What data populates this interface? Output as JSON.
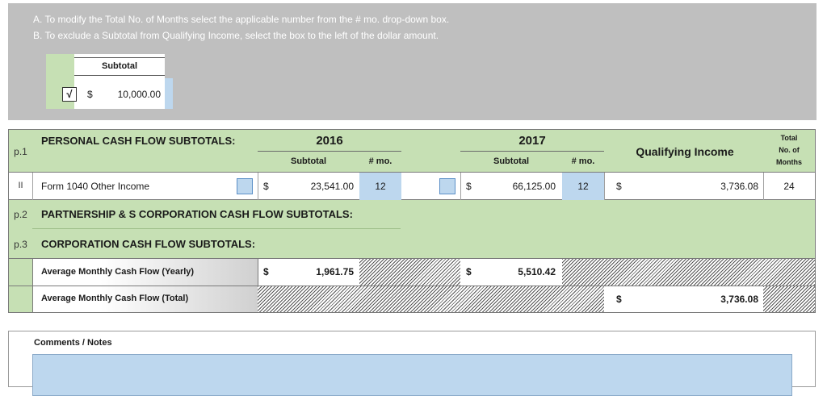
{
  "instructions": {
    "line_a": "A. To modify the Total No. of Months select the applicable number from the # mo. drop-down box.",
    "line_b": "B. To exclude a Subtotal from Qualifying Income, select the box to the left of the dollar amount.",
    "example": {
      "header": "Subtotal",
      "check": "√",
      "currency": "$",
      "amount": "10,000.00"
    }
  },
  "header": {
    "p_label": "p.1",
    "section_title": "PERSONAL CASH FLOW SUBTOTALS:",
    "year1": "2016",
    "year2": "2017",
    "subtotal_label": "Subtotal",
    "months_label": "# mo.",
    "qualifying_label": "Qualifying Income",
    "total_label_1": "Total",
    "total_label_2": "No. of",
    "total_label_3": "Months"
  },
  "income_row": {
    "row_label": "II",
    "name": "Form 1040 Other Income",
    "currency": "$",
    "y1_subtotal": "23,541.00",
    "y1_months": "12",
    "y2_subtotal": "66,125.00",
    "y2_months": "12",
    "qualifying": "3,736.08",
    "total_months": "24"
  },
  "sections": {
    "p2_label": "p.2",
    "p2_title": "PARTNERSHIP & S CORPORATION CASH FLOW SUBTOTALS:",
    "p3_label": "p.3",
    "p3_title": "CORPORATION CASH FLOW SUBTOTALS:"
  },
  "averages": {
    "yearly_label": "Average Monthly Cash Flow (Yearly)",
    "currency": "$",
    "y1": "1,961.75",
    "y2": "5,510.42",
    "total_label": "Average Monthly Cash Flow (Total)",
    "total": "3,736.08"
  },
  "comments": {
    "label": "Comments / Notes"
  },
  "colors": {
    "green": "#c6e0b4",
    "gray_panel": "#bfbfbf",
    "blue_input": "#bdd7ee"
  }
}
